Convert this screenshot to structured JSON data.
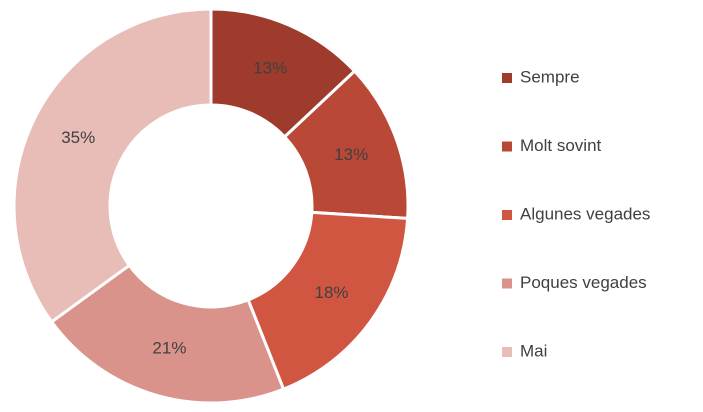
{
  "chart_data": {
    "type": "pie",
    "categories": [
      "Sempre",
      "Molt sovint",
      "Algunes vegades",
      "Poques vegades",
      "Mai"
    ],
    "values": [
      13,
      13,
      18,
      21,
      35
    ],
    "value_labels": [
      "13%",
      "13%",
      "18%",
      "21%",
      "35%"
    ],
    "colors": [
      "#9e3b2c",
      "#b94836",
      "#d15642",
      "#d9938b",
      "#e8bdb8"
    ],
    "donut": true,
    "legend": "right"
  }
}
